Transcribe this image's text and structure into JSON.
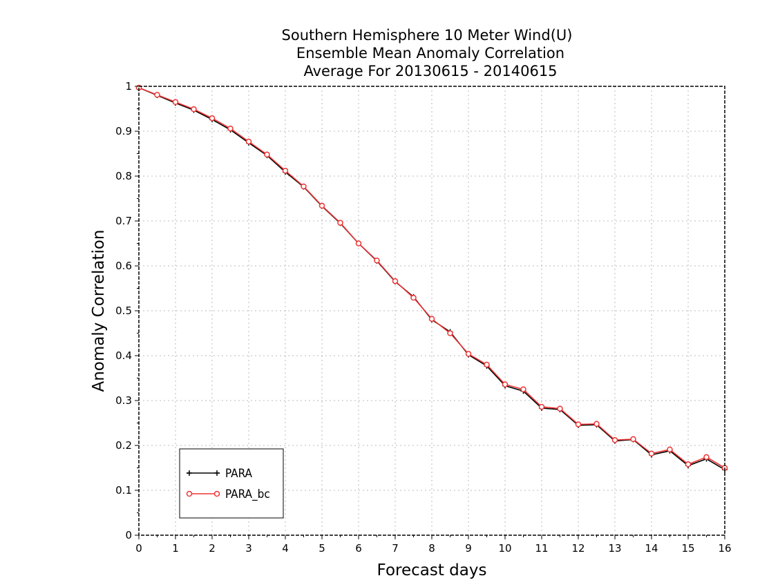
{
  "chart_data": {
    "type": "line",
    "title": [
      "Southern Hemisphere 10 Meter Wind(U)",
      "Ensemble Mean Anomaly Correlation",
      "Average For 20130615 - 20140615"
    ],
    "xlabel": "Forecast days",
    "ylabel": "Anomaly Correlation",
    "xlim": [
      0,
      16
    ],
    "ylim": [
      0,
      1
    ],
    "x_ticks": [
      "0",
      "1",
      "2",
      "3",
      "4",
      "5",
      "6",
      "7",
      "8",
      "9",
      "10",
      "11",
      "12",
      "13",
      "14",
      "15",
      "16"
    ],
    "y_ticks": [
      "0",
      "0.1",
      "0.2",
      "0.3",
      "0.4",
      "0.5",
      "0.6",
      "0.7",
      "0.8",
      "0.9",
      "1"
    ],
    "grid": true,
    "legend_position": "bottom-left",
    "x": [
      0,
      0.5,
      1,
      1.5,
      2,
      2.5,
      3,
      3.5,
      4,
      4.5,
      5,
      5.5,
      6,
      6.5,
      7,
      7.5,
      8,
      8.5,
      9,
      9.5,
      10,
      10.5,
      11,
      11.5,
      12,
      12.5,
      13,
      13.5,
      14,
      14.5,
      15,
      15.5,
      16
    ],
    "series": [
      {
        "name": "PARA",
        "color": "#000000",
        "marker": "plus",
        "values": [
          0.997,
          0.98,
          0.963,
          0.947,
          0.926,
          0.903,
          0.874,
          0.846,
          0.809,
          0.776,
          0.733,
          0.695,
          0.65,
          0.611,
          0.565,
          0.531,
          0.48,
          0.453,
          0.402,
          0.377,
          0.333,
          0.321,
          0.283,
          0.28,
          0.245,
          0.246,
          0.21,
          0.213,
          0.179,
          0.188,
          0.155,
          0.17,
          0.146
        ]
      },
      {
        "name": "PARA_bc",
        "color": "#ee3333",
        "marker": "circle",
        "values": [
          0.997,
          0.981,
          0.965,
          0.949,
          0.929,
          0.906,
          0.877,
          0.848,
          0.812,
          0.777,
          0.734,
          0.696,
          0.65,
          0.612,
          0.566,
          0.529,
          0.482,
          0.45,
          0.404,
          0.38,
          0.336,
          0.325,
          0.286,
          0.282,
          0.247,
          0.248,
          0.212,
          0.214,
          0.182,
          0.191,
          0.158,
          0.174,
          0.15
        ]
      }
    ]
  }
}
